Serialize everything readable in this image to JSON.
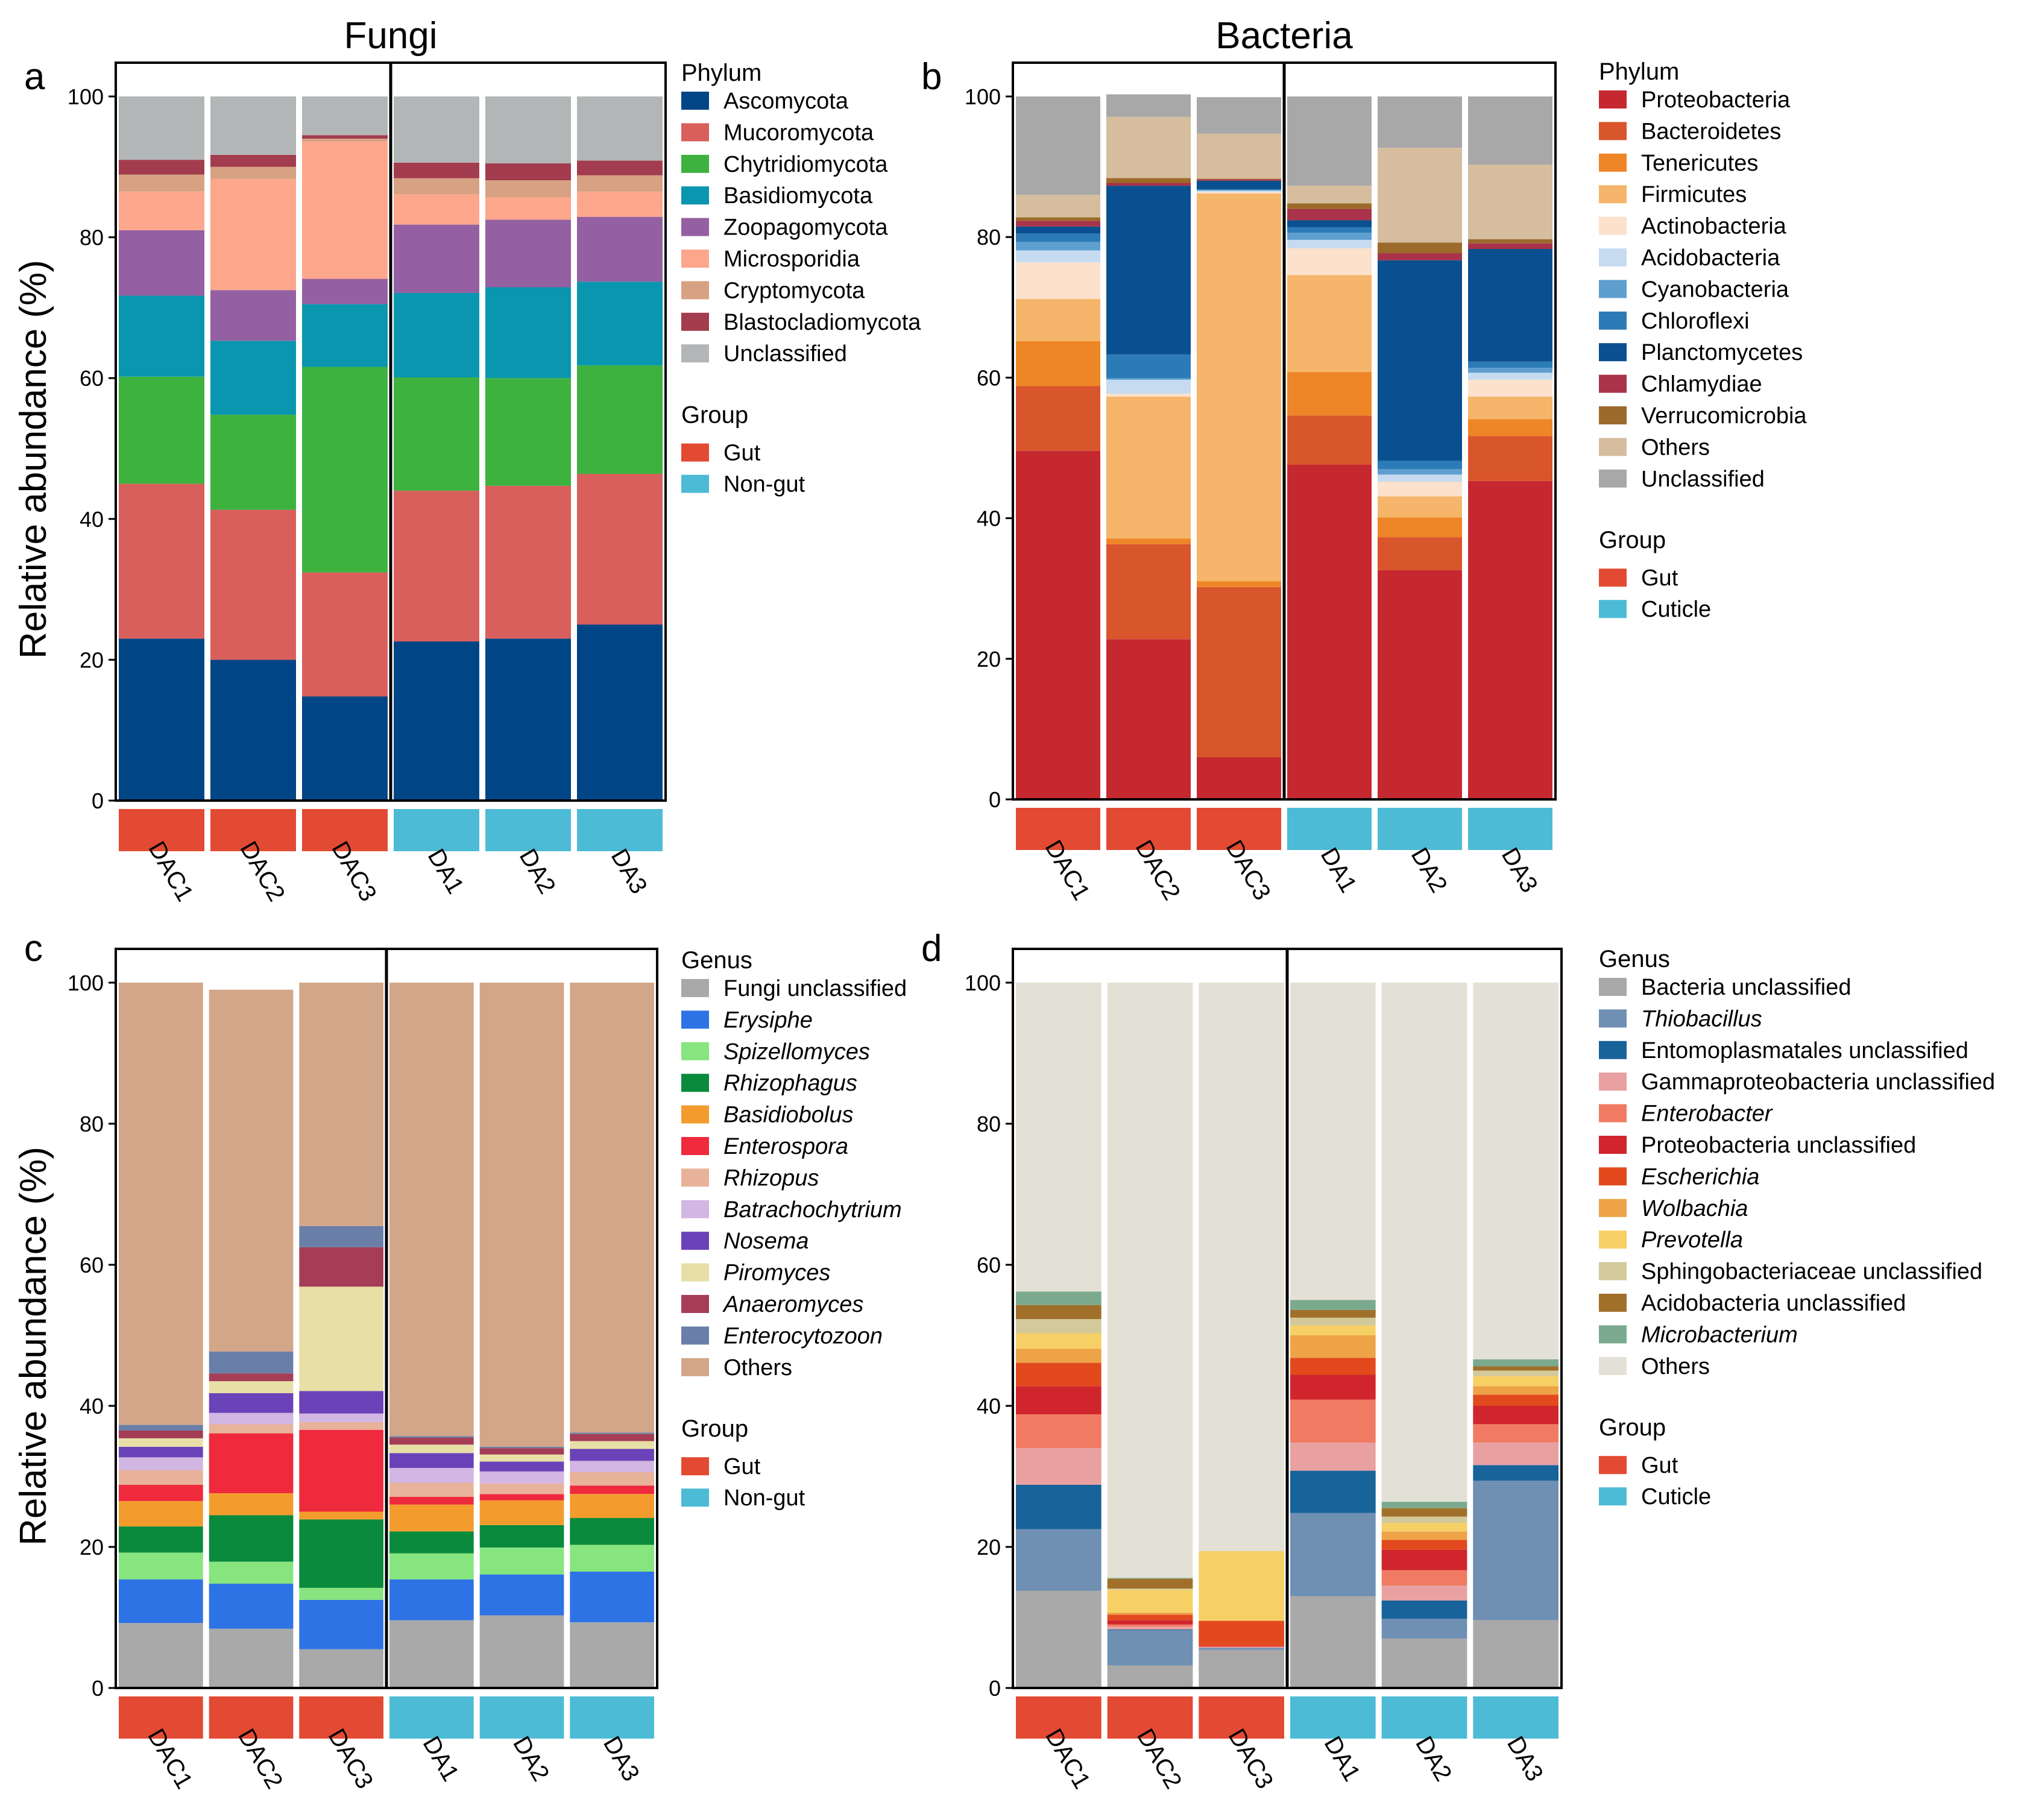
{
  "chart_data": [
    {
      "panel": "a",
      "title": "Fungi",
      "type": "bar",
      "stacked": true,
      "ylabel": "Relative abundance (%)",
      "ylim": [
        0,
        100
      ],
      "yticks": [
        0,
        20,
        40,
        60,
        80,
        100
      ],
      "categories": [
        "DAC1",
        "DAC2",
        "DAC3",
        "DA1",
        "DA2",
        "DA3"
      ],
      "groups": [
        "Gut",
        "Gut",
        "Gut",
        "Non-gut",
        "Non-gut",
        "Non-gut"
      ],
      "legend_title": "Phylum",
      "group_title": "Group",
      "group_legend": [
        {
          "name": "Gut",
          "color": "#E34A33"
        },
        {
          "name": "Non-gut",
          "color": "#4DBBD5"
        }
      ],
      "series": [
        {
          "name": "Ascomycota",
          "color": "#004586",
          "italic": false,
          "values": [
            23,
            20,
            14.8,
            22.6,
            23,
            25
          ]
        },
        {
          "name": "Mucoromycota",
          "color": "#D95F5C",
          "italic": false,
          "values": [
            22,
            21.3,
            17.6,
            21.4,
            21.7,
            21.4
          ]
        },
        {
          "name": "Chytridiomycota",
          "color": "#3DB23F",
          "italic": false,
          "values": [
            15.2,
            13.5,
            29.2,
            16.1,
            15.3,
            15.4
          ]
        },
        {
          "name": "Basidiomycota",
          "color": "#0A96AE",
          "italic": false,
          "values": [
            11.5,
            10.5,
            8.9,
            12,
            12.9,
            11.9
          ]
        },
        {
          "name": "Zoopagomycota",
          "color": "#9560A2",
          "italic": false,
          "values": [
            9.3,
            7.2,
            3.6,
            9.7,
            9.6,
            9.2
          ]
        },
        {
          "name": "Microsporidia",
          "color": "#FCA78C",
          "italic": false,
          "values": [
            5.5,
            15.8,
            19.5,
            4.3,
            3.2,
            3.6
          ]
        },
        {
          "name": "Cryptomycota",
          "color": "#D7A183",
          "italic": false,
          "values": [
            2.4,
            1.7,
            0.4,
            2.3,
            2.4,
            2.3
          ]
        },
        {
          "name": "Blastocladiomycota",
          "color": "#A23C4E",
          "italic": false,
          "values": [
            2.1,
            1.7,
            0.5,
            2.2,
            2.4,
            2.1
          ]
        },
        {
          "name": "Unclassified",
          "color": "#B3B6B7",
          "italic": false,
          "values": [
            9,
            8.3,
            5.5,
            9.4,
            9.5,
            9.1
          ]
        }
      ]
    },
    {
      "panel": "b",
      "title": "Bacteria",
      "type": "bar",
      "stacked": true,
      "ylabel": "",
      "ylim": [
        0,
        100
      ],
      "yticks": [
        0,
        20,
        40,
        60,
        80,
        100
      ],
      "categories": [
        "DAC1",
        "DAC2",
        "DAC3",
        "DA1",
        "DA2",
        "DA3"
      ],
      "groups": [
        "Gut",
        "Gut",
        "Gut",
        "Cuticle",
        "Cuticle",
        "Cuticle"
      ],
      "legend_title": "Phylum",
      "group_title": "Group",
      "group_legend": [
        {
          "name": "Gut",
          "color": "#E34A33"
        },
        {
          "name": "Cuticle",
          "color": "#4DBBD5"
        }
      ],
      "series": [
        {
          "name": "Proteobacteria",
          "color": "#C62830",
          "italic": false,
          "values": [
            49.6,
            22.8,
            6,
            47.6,
            32.6,
            45.3
          ]
        },
        {
          "name": "Bacteroidetes",
          "color": "#D9552B",
          "italic": false,
          "values": [
            9.2,
            13.5,
            24.2,
            7,
            4.7,
            6.4
          ]
        },
        {
          "name": "Tenericutes",
          "color": "#EE8526",
          "italic": false,
          "values": [
            6.4,
            0.8,
            0.8,
            6.2,
            2.8,
            2.4
          ]
        },
        {
          "name": "Firmicutes",
          "color": "#F5B56A",
          "italic": false,
          "values": [
            6,
            20.2,
            55.2,
            13.8,
            3,
            3.2
          ]
        },
        {
          "name": "Actinobacteria",
          "color": "#FCE1CC",
          "italic": false,
          "values": [
            5.2,
            0.4,
            0.2,
            3.8,
            2.1,
            2.4
          ]
        },
        {
          "name": "Acidobacteria",
          "color": "#C6DBEF",
          "italic": false,
          "values": [
            1.7,
            2,
            0.2,
            1.2,
            1,
            1
          ]
        },
        {
          "name": "Cyanobacteria",
          "color": "#5E9FD0",
          "italic": false,
          "values": [
            1.2,
            0.2,
            0.1,
            1,
            0.8,
            0.7
          ]
        },
        {
          "name": "Chloroflexi",
          "color": "#2C7BB6",
          "italic": false,
          "values": [
            1.2,
            3.4,
            0.1,
            0.8,
            1.2,
            0.9
          ]
        },
        {
          "name": "Planctomycetes",
          "color": "#0A4F8F",
          "italic": false,
          "values": [
            1,
            24,
            1.2,
            1,
            28.5,
            16
          ]
        },
        {
          "name": "Chlamydiae",
          "color": "#A8334A",
          "italic": false,
          "values": [
            0.8,
            0.4,
            0.2,
            1.6,
            1,
            0.8
          ]
        },
        {
          "name": "Verrucomicrobia",
          "color": "#9C6A2B",
          "italic": false,
          "values": [
            0.5,
            0.7,
            0.1,
            0.8,
            1.5,
            0.6
          ]
        },
        {
          "name": "Others",
          "color": "#D5BD9E",
          "italic": false,
          "values": [
            3.2,
            8.7,
            6.4,
            2.5,
            13.5,
            10.6
          ]
        },
        {
          "name": "Unclassified",
          "color": "#A8A8A8",
          "italic": false,
          "values": [
            14,
            3.2,
            5.2,
            12.7,
            7.3,
            9.7
          ]
        }
      ]
    },
    {
      "panel": "c",
      "title": "",
      "type": "bar",
      "stacked": true,
      "ylabel": "Relative abundance (%)",
      "ylim": [
        0,
        100
      ],
      "yticks": [
        0,
        20,
        40,
        60,
        80,
        100
      ],
      "categories": [
        "DAC1",
        "DAC2",
        "DAC3",
        "DA1",
        "DA2",
        "DA3"
      ],
      "groups": [
        "Gut",
        "Gut",
        "Gut",
        "Non-gut",
        "Non-gut",
        "Non-gut"
      ],
      "legend_title": "Genus",
      "group_title": "Group",
      "group_legend": [
        {
          "name": "Gut",
          "color": "#E34A33"
        },
        {
          "name": "Non-gut",
          "color": "#4DBBD5"
        }
      ],
      "series": [
        {
          "name": "Fungi unclassified",
          "color": "#A9A9A9",
          "italic": false,
          "values": [
            9.2,
            8.4,
            5.5,
            9.6,
            10.3,
            9.3
          ]
        },
        {
          "name": "Erysiphe",
          "color": "#2E73E5",
          "italic": true,
          "values": [
            6.2,
            6.4,
            7,
            5.8,
            5.8,
            7.2
          ]
        },
        {
          "name": "Spizellomyces",
          "color": "#86E57F",
          "italic": true,
          "values": [
            3.8,
            3.1,
            1.7,
            3.7,
            3.8,
            3.8
          ]
        },
        {
          "name": "Rhizophagus",
          "color": "#0A8A3C",
          "italic": true,
          "values": [
            3.7,
            6.6,
            9.7,
            3.1,
            3.2,
            3.8
          ]
        },
        {
          "name": "Basidiobolus",
          "color": "#F39C2D",
          "italic": true,
          "values": [
            3.6,
            3.1,
            1.1,
            3.8,
            3.5,
            3.4
          ]
        },
        {
          "name": "Enterospora",
          "color": "#EF2A3C",
          "italic": true,
          "values": [
            2.3,
            8.5,
            11.6,
            1.1,
            0.9,
            1.2
          ]
        },
        {
          "name": "Rhizopus",
          "color": "#E8B29B",
          "italic": true,
          "values": [
            2.1,
            1.3,
            1.1,
            2,
            1.5,
            1.9
          ]
        },
        {
          "name": "Batrachochytrium",
          "color": "#D2B6E3",
          "italic": true,
          "values": [
            1.8,
            1.6,
            1.2,
            2.1,
            1.7,
            1.6
          ]
        },
        {
          "name": "Nosema",
          "color": "#6A43B8",
          "italic": true,
          "values": [
            1.5,
            2.8,
            3.2,
            2.1,
            1.4,
            1.7
          ]
        },
        {
          "name": "Piromyces",
          "color": "#E8DFA7",
          "italic": true,
          "values": [
            1.2,
            1.7,
            14.8,
            1.2,
            1,
            1.1
          ]
        },
        {
          "name": "Anaeromyces",
          "color": "#A43D55",
          "italic": true,
          "values": [
            1.1,
            1.1,
            5.6,
            1,
            0.9,
            1
          ]
        },
        {
          "name": "Enterocytozoon",
          "color": "#6A7FA8",
          "italic": true,
          "values": [
            0.8,
            3.1,
            3,
            0.2,
            0.2,
            0.2
          ]
        },
        {
          "name": "Others",
          "color": "#D2A688",
          "italic": false,
          "values": [
            62.7,
            51.3,
            34.5,
            64.3,
            65.8,
            63.8
          ]
        }
      ]
    },
    {
      "panel": "d",
      "title": "",
      "type": "bar",
      "stacked": true,
      "ylabel": "",
      "ylim": [
        0,
        100
      ],
      "yticks": [
        0,
        20,
        40,
        60,
        80,
        100
      ],
      "categories": [
        "DAC1",
        "DAC2",
        "DAC3",
        "DA1",
        "DA2",
        "DA3"
      ],
      "groups": [
        "Gut",
        "Gut",
        "Gut",
        "Cuticle",
        "Cuticle",
        "Cuticle"
      ],
      "legend_title": "Genus",
      "group_title": "Group",
      "group_legend": [
        {
          "name": "Gut",
          "color": "#E34A33"
        },
        {
          "name": "Cuticle",
          "color": "#4DBBD5"
        }
      ],
      "series": [
        {
          "name": "Bacteria unclassified",
          "color": "#A9A9A9",
          "italic": false,
          "values": [
            13.8,
            3.2,
            5.4,
            13,
            7,
            9.6
          ]
        },
        {
          "name": "Thiobacillus",
          "color": "#6F8FB3",
          "italic": true,
          "values": [
            8.7,
            5,
            0.3,
            11.8,
            2.8,
            19.8
          ]
        },
        {
          "name": "Entomoplasmatales unclassified",
          "color": "#17639A",
          "italic": false,
          "values": [
            6.3,
            0.1,
            0,
            6,
            2.6,
            2.2
          ]
        },
        {
          "name": "Gammaproteobacteria unclassified",
          "color": "#E8A0A0",
          "italic": false,
          "values": [
            5.2,
            0.4,
            0.1,
            4,
            2.1,
            3.2
          ]
        },
        {
          "name": "Enterobacter",
          "color": "#F07B62",
          "italic": true,
          "values": [
            4.8,
            0.3,
            0.1,
            6.1,
            2.2,
            2.6
          ]
        },
        {
          "name": "Proteobacteria unclassified",
          "color": "#D0252C",
          "italic": false,
          "values": [
            4,
            0.6,
            0.1,
            3.5,
            2.9,
            2.6
          ]
        },
        {
          "name": "Escherichia",
          "color": "#E24A1E",
          "italic": true,
          "values": [
            3.3,
            0.8,
            3.5,
            2.4,
            1.4,
            1.6
          ]
        },
        {
          "name": "Wolbachia",
          "color": "#EEA347",
          "italic": true,
          "values": [
            2,
            0.3,
            0.1,
            3.2,
            1.2,
            1.2
          ]
        },
        {
          "name": "Prevotella",
          "color": "#F7D065",
          "italic": true,
          "values": [
            2.2,
            3.2,
            9.8,
            1.4,
            1.2,
            1.4
          ]
        },
        {
          "name": "Sphingobacteriaceae unclassified",
          "color": "#D3C99A",
          "italic": false,
          "values": [
            2,
            0.2,
            0,
            1.1,
            0.9,
            0.8
          ]
        },
        {
          "name": "Acidobacteria unclassified",
          "color": "#A0702A",
          "italic": false,
          "values": [
            2,
            1.4,
            0,
            1.1,
            1.2,
            0.6
          ]
        },
        {
          "name": "Microbacterium",
          "color": "#7BAA8E",
          "italic": true,
          "values": [
            1.9,
            0.1,
            0,
            1.4,
            0.9,
            1
          ]
        },
        {
          "name": "Others",
          "color": "#E3E1D5",
          "italic": false,
          "values": [
            43.8,
            84.4,
            80.6,
            45,
            73.6,
            53.4
          ]
        }
      ]
    }
  ]
}
